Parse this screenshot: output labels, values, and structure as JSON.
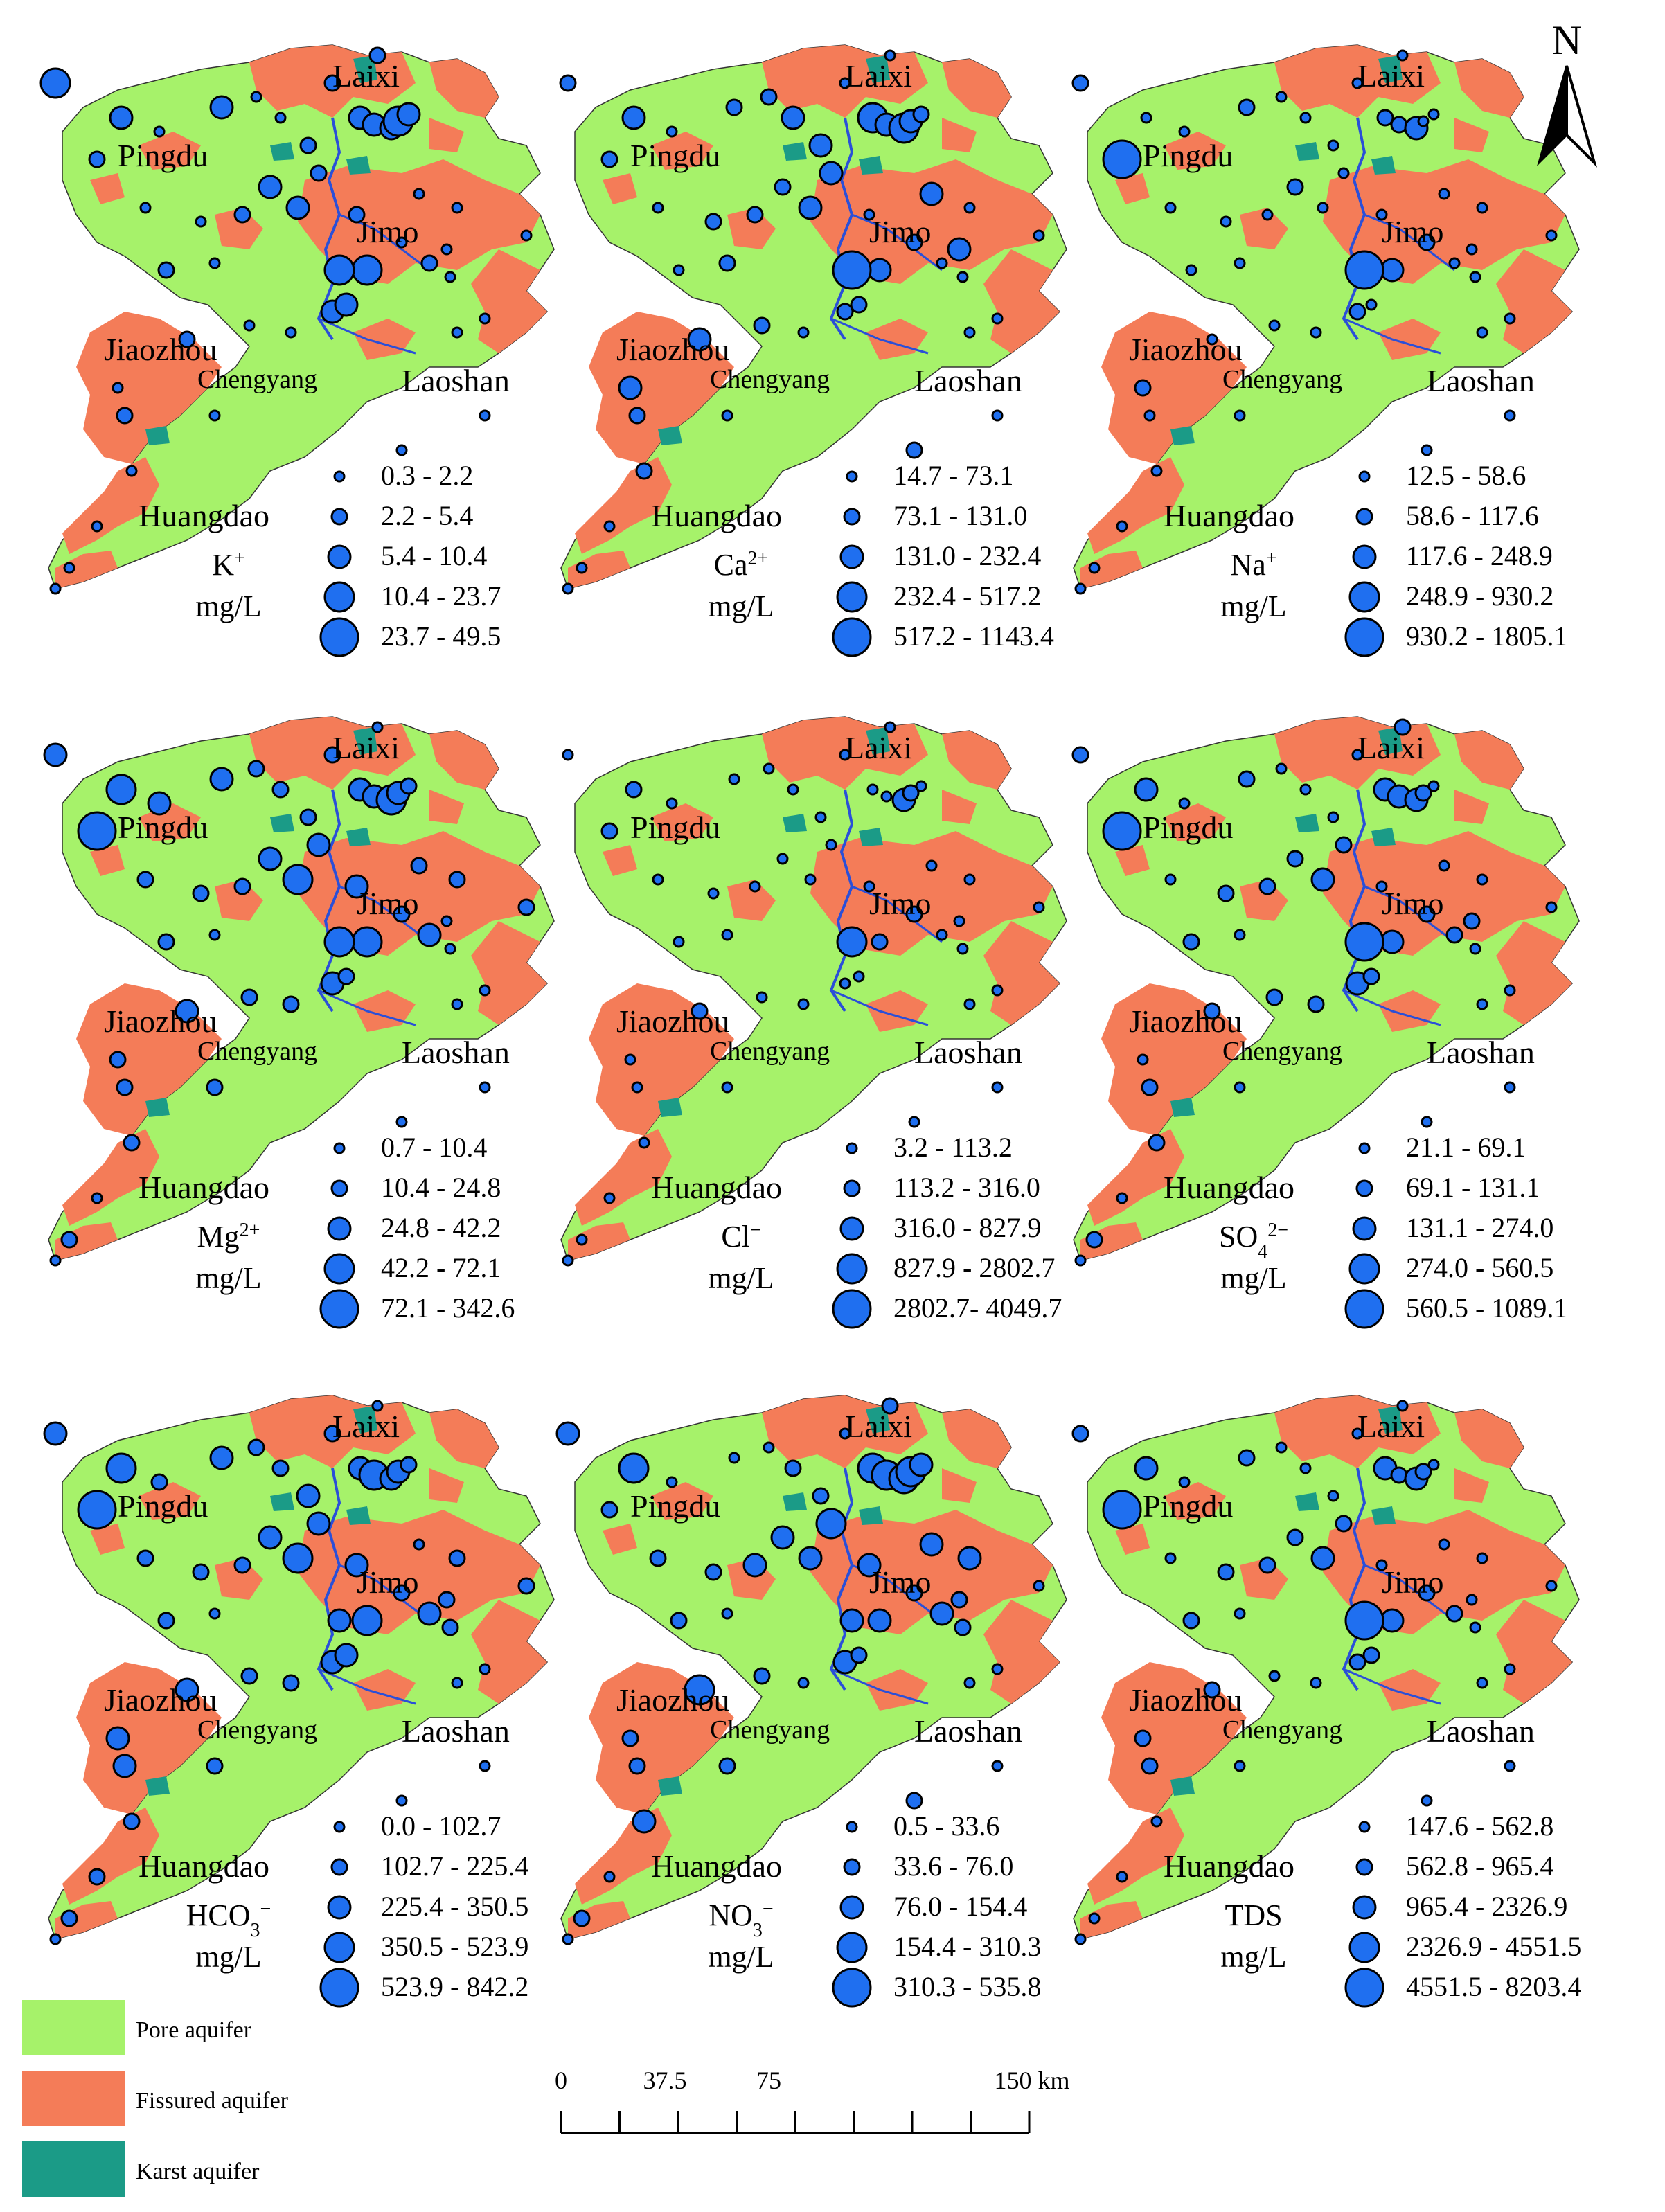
{
  "north_label": "N",
  "cities": {
    "laixi": "Laixi",
    "pingdu": "Pingdu",
    "jimo": "Jimo",
    "jiaozhou": "Jiaozhou",
    "chengyang": "Chengyang",
    "laoshan": "Laoshan",
    "huangdao": "Huangdao"
  },
  "panels": [
    {
      "id": "K",
      "ion": "K",
      "charge": "+",
      "unit": "mg/L",
      "classes": [
        "0.3 - 2.2",
        "2.2 - 5.4",
        "5.4 - 10.4",
        "10.4 - 23.7",
        "23.7 - 49.5"
      ]
    },
    {
      "id": "Ca",
      "ion": "Ca",
      "charge": "2+",
      "unit": "mg/L",
      "classes": [
        "14.7 - 73.1",
        "73.1 - 131.0",
        "131.0 - 232.4",
        "232.4 - 517.2",
        "517.2 - 1143.4"
      ]
    },
    {
      "id": "Na",
      "ion": "Na",
      "charge": "+",
      "unit": "mg/L",
      "classes": [
        "12.5 - 58.6",
        "58.6 - 117.6",
        "117.6 - 248.9",
        "248.9 - 930.2",
        "930.2 - 1805.1"
      ]
    },
    {
      "id": "Mg",
      "ion": "Mg",
      "charge": "2+",
      "unit": "mg/L",
      "classes": [
        "0.7 - 10.4",
        "10.4 - 24.8",
        "24.8 - 42.2",
        "42.2 - 72.1",
        "72.1 - 342.6"
      ]
    },
    {
      "id": "Cl",
      "ion": "Cl",
      "charge": "−",
      "unit": "mg/L",
      "classes": [
        "3.2 - 113.2",
        "113.2 - 316.0",
        "316.0 - 827.9",
        "827.9 - 2802.7",
        "2802.7- 4049.7"
      ]
    },
    {
      "id": "SO4",
      "ion": "SO",
      "sub": "4",
      "charge": "2−",
      "unit": "mg/L",
      "classes": [
        "21.1 - 69.1",
        "69.1 - 131.1",
        "131.1 - 274.0",
        "274.0 - 560.5",
        "560.5 - 1089.1"
      ]
    },
    {
      "id": "HCO3",
      "ion": "HCO",
      "sub": "3",
      "charge": "−",
      "unit": "mg/L",
      "classes": [
        "0.0 - 102.7",
        "102.7 - 225.4",
        "225.4 - 350.5",
        "350.5 - 523.9",
        "523.9 - 842.2"
      ]
    },
    {
      "id": "NO3",
      "ion": "NO",
      "sub": "3",
      "charge": "−",
      "unit": "mg/L",
      "classes": [
        "0.5 - 33.6",
        "33.6 - 76.0",
        "76.0 - 154.4",
        "154.4 - 310.3",
        "310.3 - 535.8"
      ]
    },
    {
      "id": "TDS",
      "ion": "TDS",
      "charge": "",
      "unit": "mg/L",
      "classes": [
        "147.6 - 562.8",
        "562.8 - 965.4",
        "965.4 - 2326.9",
        "2326.9 - 4551.5",
        "4551.5 - 8203.4"
      ]
    }
  ],
  "aquifer_legend": [
    {
      "label": "Pore aquifer",
      "color": "#a6f26a"
    },
    {
      "label": "Fissured aquifer",
      "color": "#f47c58"
    },
    {
      "label": "Karst aquifer",
      "color": "#1b9b87"
    }
  ],
  "scale_bar": {
    "ticks": [
      "0",
      "37.5",
      "75",
      "150 km"
    ],
    "values_km": [
      0,
      37.5,
      75,
      150
    ]
  },
  "colors": {
    "point_fill": "#1f6ff0",
    "point_stroke": "#000000",
    "pore": "#a6f26a",
    "fissured": "#f47c58",
    "karst": "#1b9b87",
    "river": "#2a4fd8"
  }
}
